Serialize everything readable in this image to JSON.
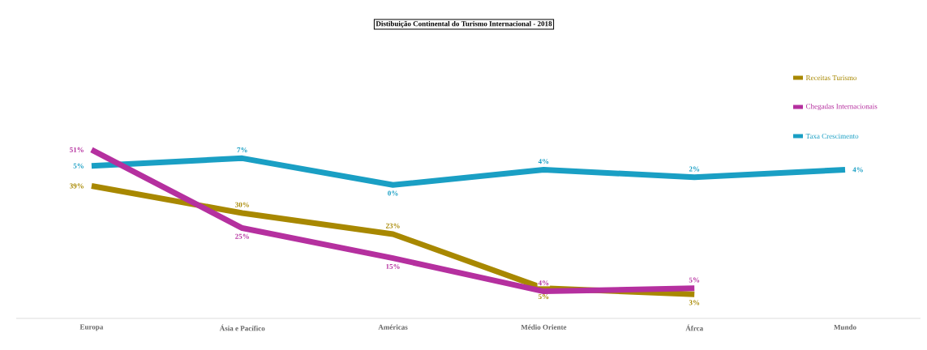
{
  "chart_data": {
    "type": "line",
    "title": "Distibuição Continental do Turismo Internacional - 2018",
    "categories": [
      "Europa",
      "Ásia e Pacífico",
      "Américas",
      "Médio Oriente",
      "Áfrca",
      "Mundo"
    ],
    "series": [
      {
        "name": "Receitas Turismo",
        "color": "#a88800",
        "values": [
          39,
          30,
          23,
          5,
          3,
          null
        ],
        "value_labels": [
          "39%",
          "30%",
          "23%",
          "5%",
          "3%",
          null
        ]
      },
      {
        "name": "Chegadas Internacionais",
        "color": "#b5309f",
        "values": [
          51,
          25,
          15,
          4,
          5,
          null
        ],
        "value_labels": [
          "51%",
          "25%",
          "15%",
          "4%",
          "5%",
          null
        ]
      },
      {
        "name": "Taxa Crescimento",
        "color": "#1a9fc4",
        "axis": "y2",
        "values": [
          5,
          7,
          0,
          4,
          2,
          4
        ],
        "value_labels": [
          "5%",
          "7%",
          "0%",
          "4%",
          "2%",
          "4%"
        ]
      }
    ],
    "tick_labels": "x",
    "legend": "top right",
    "marker": "none",
    "line_style": "solid"
  }
}
